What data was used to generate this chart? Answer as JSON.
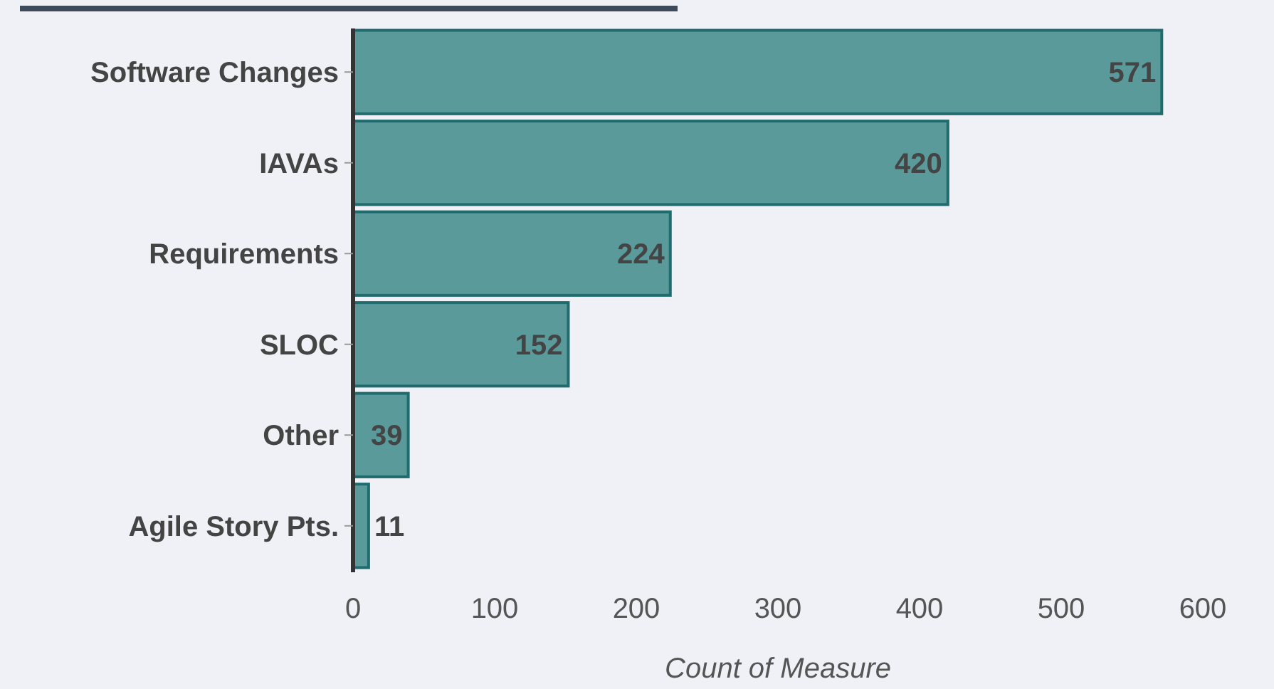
{
  "chart_data": {
    "type": "bar",
    "orientation": "horizontal",
    "categories": [
      "Software Changes",
      "IAVAs",
      "Requirements",
      "SLOC",
      "Other",
      "Agile Story Pts."
    ],
    "values": [
      571,
      420,
      224,
      152,
      39,
      11
    ],
    "color": "#5b9a9b",
    "xlim": [
      0,
      600
    ],
    "xticks": [
      0,
      100,
      200,
      300,
      400,
      500,
      600
    ],
    "xlabel": "Count of Measure",
    "data_labels": true,
    "grid": false
  }
}
